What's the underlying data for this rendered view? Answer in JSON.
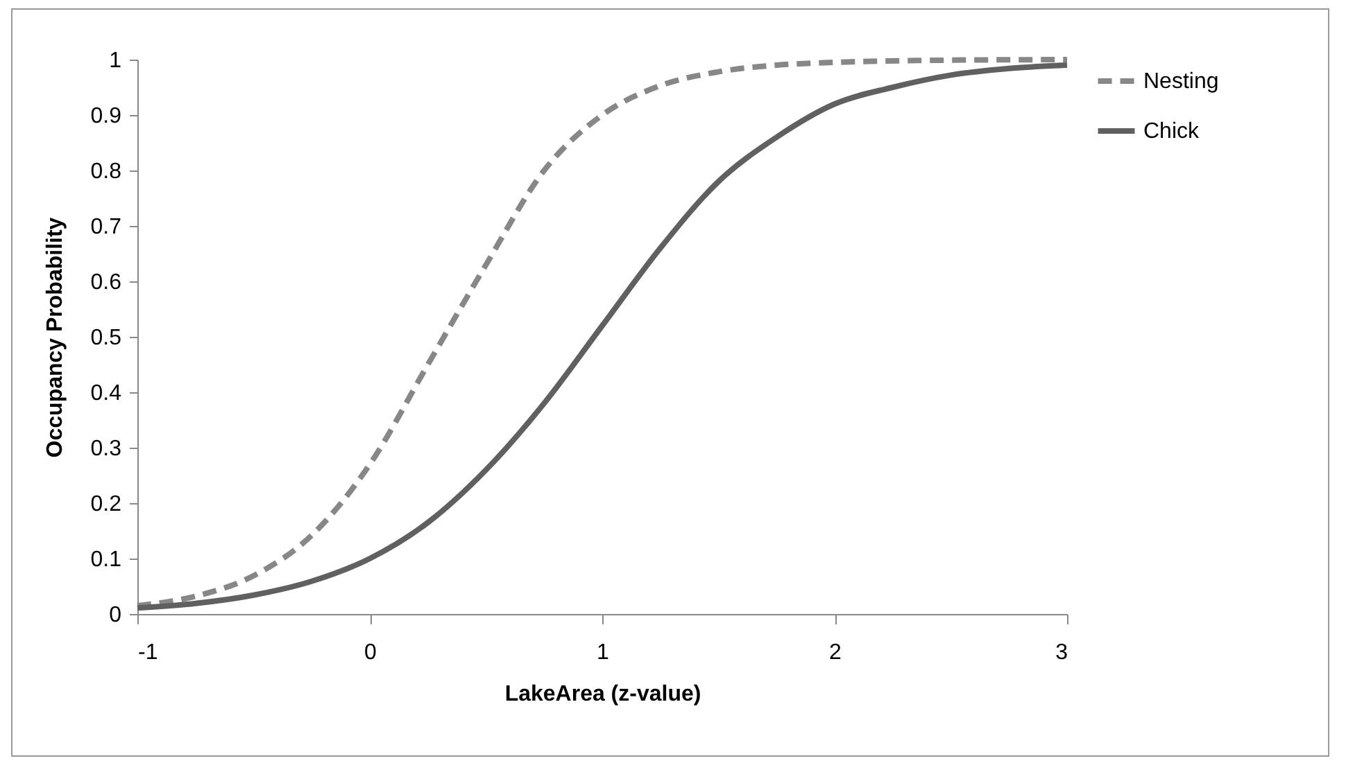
{
  "chart_data": {
    "type": "line",
    "xlabel": "LakeArea (z-value)",
    "ylabel": "Occupancy Probability",
    "xlim": [
      -1,
      3
    ],
    "ylim": [
      0,
      1
    ],
    "xticks": [
      -1,
      0,
      1,
      2,
      3
    ],
    "yticks": [
      0,
      0.1,
      0.2,
      0.3,
      0.4,
      0.5,
      0.6,
      0.7,
      0.8,
      0.9,
      1
    ],
    "grid": false,
    "legend": "right",
    "marker": "none",
    "series": [
      {
        "name": "Nesting",
        "color": "#878787",
        "line_style": "dashed",
        "x": [
          -1,
          -0.75,
          -0.5,
          -0.25,
          0,
          0.25,
          0.5,
          0.75,
          1,
          1.25,
          1.5,
          1.75,
          2,
          2.5,
          3
        ],
        "values": [
          0.015,
          0.032,
          0.069,
          0.142,
          0.27,
          0.45,
          0.63,
          0.8,
          0.9,
          0.953,
          0.978,
          0.99,
          0.995,
          0.999,
          1
        ]
      },
      {
        "name": "Chick",
        "color": "#606060",
        "line_style": "solid",
        "x": [
          -1,
          -0.75,
          -0.5,
          -0.25,
          0,
          0.25,
          0.5,
          0.75,
          1,
          1.25,
          1.5,
          1.75,
          2,
          2.25,
          2.5,
          2.75,
          3
        ],
        "values": [
          0.011,
          0.019,
          0.034,
          0.059,
          0.1,
          0.165,
          0.26,
          0.38,
          0.52,
          0.66,
          0.78,
          0.86,
          0.92,
          0.95,
          0.972,
          0.984,
          0.99
        ]
      }
    ]
  }
}
